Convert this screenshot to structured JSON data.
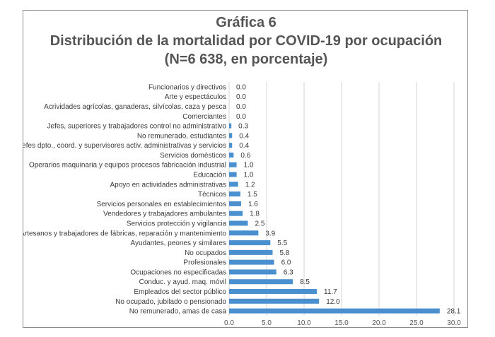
{
  "chart_data": {
    "type": "bar",
    "orientation": "horizontal",
    "title_line1": "Gráfica 6",
    "title_line2": "Distribución de la mortalidad por COVID-19 por ocupación",
    "title_line3": "(N=6 638, en porcentaje)",
    "categories": [
      "Funcionarios y directivos",
      "Arte y espectáculos",
      "Acrividades agrícolas, ganaderas, silvícolas, caza y pesca",
      "Comerciantes",
      "Jefes, superiores y trabajadores control no administrativo",
      "No remunerado, estudiantes",
      "Jefes dpto., coord. y supervisores activ. administrativas y servicios",
      "Servicios domésticos",
      "Operarios maquinaria y equipos procesos fabricación industrial",
      "Educación",
      "Apoyo en actividades administrativas",
      "Técnicos",
      "Servicios personales en establecimientos",
      "Vendedores y trabajadores ambulantes",
      "Servicios protección y vigilancia",
      "Artesanos y trabajadores de fábricas, reparación y mantenimiento",
      "Ayudantes, peones y similares",
      "No ocupados",
      "Profesionales",
      "Ocupaciones no especificadas",
      "Conduc. y ayud. maq. móvil",
      "Empleados del sector público",
      "No ocupado, jubilado o pensionado",
      "No remunerado, amas de casa"
    ],
    "values": [
      0.0,
      0.0,
      0.0,
      0.0,
      0.3,
      0.4,
      0.4,
      0.6,
      1.0,
      1.0,
      1.2,
      1.5,
      1.6,
      1.8,
      2.5,
      3.9,
      5.5,
      5.8,
      6.0,
      6.3,
      8.5,
      11.7,
      12.0,
      28.1
    ],
    "value_labels": [
      "0.0",
      "0.0",
      "0.0",
      "0.0",
      "0.3",
      "0.4",
      "0.4",
      "0.6",
      "1.0",
      "1.0",
      "1.2",
      "1.5",
      "1.6",
      "1.8",
      "2.5",
      "3.9",
      "5.5",
      "5.8",
      "6.0",
      "6.3",
      "8.5",
      "11.7",
      "12.0",
      "28.1"
    ],
    "xlim": [
      0,
      30
    ],
    "xticks": [
      "0.0",
      "5.0",
      "10.0",
      "15.0",
      "20.0",
      "25.0",
      "30.0"
    ],
    "grid": true,
    "bar_color": "#4a90cf",
    "grid_color": "#d6d6d6"
  }
}
